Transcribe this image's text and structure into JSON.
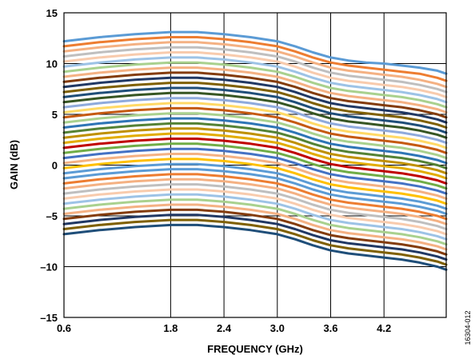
{
  "chart_data": {
    "type": "line",
    "title": "",
    "xlabel": "FREQUENCY (GHz)",
    "ylabel": "GAIN (dB)",
    "xlim": [
      0.6,
      4.9
    ],
    "ylim": [
      -15,
      15
    ],
    "x_ticks": [
      0.6,
      1.8,
      2.4,
      3.0,
      3.6,
      4.2
    ],
    "x_tick_labels": [
      "0.6",
      "1.8",
      "2.4",
      "3.0",
      "3.6",
      "4.2"
    ],
    "y_ticks": [
      -15,
      -10,
      -5,
      0,
      5,
      10,
      15
    ],
    "y_tick_labels": [
      "–15",
      "–10",
      "–5",
      "0",
      "5",
      "10",
      "15"
    ],
    "grid": true,
    "legend": "none",
    "x": [
      0.6,
      1.0,
      1.4,
      1.8,
      2.1,
      2.4,
      2.7,
      3.0,
      3.2,
      3.4,
      3.6,
      3.8,
      4.0,
      4.2,
      4.4,
      4.6,
      4.8,
      4.9
    ],
    "series": [
      {
        "values": [
          12.2,
          12.6,
          12.9,
          13.1,
          13.1,
          12.9,
          12.6,
          12.2,
          11.7,
          11.1,
          10.6,
          10.3,
          10.1,
          10.0,
          9.8,
          9.6,
          9.3,
          9.0
        ]
      },
      {
        "values": [
          11.7,
          12.1,
          12.4,
          12.6,
          12.6,
          12.4,
          12.1,
          11.7,
          11.2,
          10.6,
          10.1,
          9.8,
          9.6,
          9.4,
          9.2,
          9.0,
          8.6,
          8.3
        ]
      },
      {
        "values": [
          11.2,
          11.6,
          11.9,
          12.1,
          12.1,
          11.9,
          11.6,
          11.2,
          10.7,
          10.1,
          9.6,
          9.3,
          9.1,
          8.9,
          8.7,
          8.4,
          8.0,
          7.7
        ]
      },
      {
        "values": [
          10.7,
          11.1,
          11.4,
          11.6,
          11.6,
          11.4,
          11.1,
          10.7,
          10.2,
          9.6,
          9.1,
          8.8,
          8.6,
          8.4,
          8.2,
          7.9,
          7.5,
          7.2
        ]
      },
      {
        "values": [
          10.2,
          10.6,
          10.9,
          11.1,
          11.1,
          10.9,
          10.6,
          10.2,
          9.7,
          9.1,
          8.6,
          8.3,
          8.1,
          7.9,
          7.7,
          7.4,
          7.0,
          6.7
        ]
      },
      {
        "values": [
          9.7,
          10.1,
          10.4,
          10.6,
          10.6,
          10.4,
          10.1,
          9.7,
          9.2,
          8.6,
          8.1,
          7.8,
          7.6,
          7.4,
          7.2,
          6.9,
          6.5,
          6.2
        ]
      },
      {
        "values": [
          9.2,
          9.6,
          9.9,
          10.1,
          10.1,
          9.9,
          9.6,
          9.2,
          8.7,
          8.1,
          7.6,
          7.3,
          7.1,
          6.9,
          6.7,
          6.4,
          6.0,
          5.7
        ]
      },
      {
        "values": [
          8.7,
          9.1,
          9.4,
          9.6,
          9.6,
          9.4,
          9.1,
          8.7,
          8.2,
          7.6,
          7.1,
          6.8,
          6.6,
          6.4,
          6.2,
          5.9,
          5.5,
          5.2
        ]
      },
      {
        "values": [
          8.2,
          8.6,
          8.9,
          9.1,
          9.1,
          8.9,
          8.6,
          8.2,
          7.7,
          7.1,
          6.6,
          6.3,
          6.1,
          5.9,
          5.7,
          5.4,
          5.0,
          4.7
        ]
      },
      {
        "values": [
          7.7,
          8.1,
          8.4,
          8.6,
          8.6,
          8.4,
          8.1,
          7.7,
          7.2,
          6.6,
          6.1,
          5.8,
          5.6,
          5.4,
          5.2,
          4.9,
          4.5,
          4.2
        ]
      },
      {
        "values": [
          7.2,
          7.6,
          7.9,
          8.1,
          8.1,
          7.9,
          7.6,
          7.2,
          6.7,
          6.1,
          5.6,
          5.3,
          5.1,
          4.9,
          4.7,
          4.4,
          4.0,
          3.7
        ]
      },
      {
        "values": [
          6.7,
          7.1,
          7.4,
          7.6,
          7.6,
          7.4,
          7.1,
          6.7,
          6.2,
          5.6,
          5.1,
          4.8,
          4.6,
          4.4,
          4.2,
          3.9,
          3.5,
          3.2
        ]
      },
      {
        "values": [
          6.2,
          6.6,
          6.9,
          7.1,
          7.1,
          6.9,
          6.6,
          6.2,
          5.7,
          5.1,
          4.6,
          4.3,
          4.1,
          3.9,
          3.7,
          3.4,
          3.0,
          2.7
        ]
      },
      {
        "values": [
          5.7,
          6.1,
          6.4,
          6.6,
          6.6,
          6.4,
          6.1,
          5.7,
          5.2,
          4.6,
          4.1,
          3.8,
          3.6,
          3.4,
          3.2,
          2.9,
          2.5,
          2.2
        ]
      },
      {
        "values": [
          5.2,
          5.6,
          5.9,
          6.1,
          6.1,
          5.9,
          5.6,
          5.2,
          4.7,
          4.1,
          3.6,
          3.3,
          3.1,
          2.9,
          2.7,
          2.4,
          2.0,
          1.7
        ]
      },
      {
        "values": [
          4.7,
          5.1,
          5.4,
          5.6,
          5.6,
          5.4,
          5.1,
          4.7,
          4.2,
          3.6,
          3.1,
          2.8,
          2.6,
          2.4,
          2.2,
          1.9,
          1.5,
          1.2
        ]
      },
      {
        "values": [
          4.2,
          4.6,
          4.9,
          5.1,
          5.1,
          4.9,
          4.6,
          4.2,
          3.7,
          3.1,
          2.6,
          2.3,
          2.1,
          1.9,
          1.7,
          1.4,
          1.0,
          0.7
        ]
      },
      {
        "values": [
          3.7,
          4.1,
          4.4,
          4.6,
          4.6,
          4.4,
          4.1,
          3.7,
          3.2,
          2.6,
          2.1,
          1.8,
          1.6,
          1.4,
          1.2,
          0.9,
          0.5,
          0.2
        ]
      },
      {
        "values": [
          3.2,
          3.6,
          3.9,
          4.1,
          4.1,
          3.9,
          3.6,
          3.2,
          2.7,
          2.1,
          1.6,
          1.3,
          1.1,
          0.9,
          0.7,
          0.4,
          0.0,
          -0.3
        ]
      },
      {
        "values": [
          2.7,
          3.1,
          3.4,
          3.6,
          3.6,
          3.4,
          3.1,
          2.7,
          2.2,
          1.6,
          1.1,
          0.8,
          0.6,
          0.4,
          0.2,
          -0.1,
          -0.5,
          -0.8
        ]
      },
      {
        "values": [
          2.2,
          2.6,
          2.9,
          3.1,
          3.1,
          2.9,
          2.6,
          2.2,
          1.7,
          1.1,
          0.6,
          0.3,
          0.1,
          -0.1,
          -0.3,
          -0.6,
          -1.0,
          -1.3
        ]
      },
      {
        "values": [
          1.7,
          2.1,
          2.4,
          2.6,
          2.6,
          2.4,
          2.1,
          1.7,
          1.2,
          0.6,
          0.1,
          -0.2,
          -0.4,
          -0.6,
          -0.8,
          -1.1,
          -1.5,
          -1.8
        ]
      },
      {
        "values": [
          1.2,
          1.6,
          1.9,
          2.1,
          2.1,
          1.9,
          1.6,
          1.2,
          0.7,
          0.1,
          -0.4,
          -0.7,
          -0.9,
          -1.1,
          -1.3,
          -1.6,
          -2.0,
          -2.3
        ]
      },
      {
        "values": [
          0.7,
          1.1,
          1.4,
          1.6,
          1.6,
          1.4,
          1.1,
          0.7,
          0.2,
          -0.4,
          -0.9,
          -1.2,
          -1.4,
          -1.6,
          -1.8,
          -2.1,
          -2.5,
          -2.8
        ]
      },
      {
        "values": [
          0.2,
          0.6,
          0.9,
          1.1,
          1.1,
          0.9,
          0.6,
          0.2,
          -0.3,
          -0.9,
          -1.4,
          -1.7,
          -1.9,
          -2.1,
          -2.3,
          -2.6,
          -3.0,
          -3.3
        ]
      },
      {
        "values": [
          -0.3,
          0.1,
          0.4,
          0.6,
          0.6,
          0.4,
          0.1,
          -0.3,
          -0.8,
          -1.4,
          -1.9,
          -2.2,
          -2.4,
          -2.6,
          -2.8,
          -3.1,
          -3.5,
          -3.8
        ]
      },
      {
        "values": [
          -0.8,
          -0.4,
          -0.1,
          0.1,
          0.1,
          -0.1,
          -0.4,
          -0.8,
          -1.3,
          -1.9,
          -2.4,
          -2.7,
          -2.9,
          -3.1,
          -3.3,
          -3.6,
          -4.0,
          -4.3
        ]
      },
      {
        "values": [
          -1.3,
          -0.9,
          -0.6,
          -0.4,
          -0.4,
          -0.6,
          -0.9,
          -1.3,
          -1.8,
          -2.4,
          -2.9,
          -3.2,
          -3.4,
          -3.6,
          -3.8,
          -4.1,
          -4.5,
          -4.8
        ]
      },
      {
        "values": [
          -1.8,
          -1.4,
          -1.1,
          -0.9,
          -0.9,
          -1.1,
          -1.4,
          -1.8,
          -2.3,
          -2.9,
          -3.4,
          -3.7,
          -3.9,
          -4.1,
          -4.3,
          -4.6,
          -5.0,
          -5.3
        ]
      },
      {
        "values": [
          -2.3,
          -1.9,
          -1.6,
          -1.4,
          -1.4,
          -1.6,
          -1.9,
          -2.3,
          -2.8,
          -3.4,
          -3.9,
          -4.2,
          -4.4,
          -4.6,
          -4.8,
          -5.1,
          -5.5,
          -5.8
        ]
      },
      {
        "values": [
          -2.8,
          -2.4,
          -2.1,
          -1.9,
          -1.9,
          -2.1,
          -2.4,
          -2.8,
          -3.3,
          -3.9,
          -4.4,
          -4.7,
          -4.9,
          -5.1,
          -5.3,
          -5.6,
          -6.0,
          -6.3
        ]
      },
      {
        "values": [
          -3.3,
          -2.9,
          -2.6,
          -2.4,
          -2.4,
          -2.6,
          -2.9,
          -3.3,
          -3.8,
          -4.4,
          -4.9,
          -5.2,
          -5.4,
          -5.6,
          -5.8,
          -6.1,
          -6.5,
          -6.8
        ]
      },
      {
        "values": [
          -3.8,
          -3.4,
          -3.1,
          -2.9,
          -2.9,
          -3.1,
          -3.4,
          -3.8,
          -4.3,
          -4.9,
          -5.4,
          -5.7,
          -5.9,
          -6.1,
          -6.3,
          -6.6,
          -7.0,
          -7.3
        ]
      },
      {
        "values": [
          -4.3,
          -3.9,
          -3.6,
          -3.4,
          -3.4,
          -3.6,
          -3.9,
          -4.3,
          -4.8,
          -5.4,
          -5.9,
          -6.2,
          -6.4,
          -6.6,
          -6.8,
          -7.1,
          -7.5,
          -7.8
        ]
      },
      {
        "values": [
          -4.8,
          -4.4,
          -4.1,
          -3.9,
          -3.9,
          -4.1,
          -4.4,
          -4.8,
          -5.3,
          -5.9,
          -6.4,
          -6.7,
          -6.9,
          -7.1,
          -7.3,
          -7.6,
          -8.0,
          -8.3
        ]
      },
      {
        "values": [
          -5.3,
          -4.9,
          -4.6,
          -4.4,
          -4.4,
          -4.6,
          -4.9,
          -5.3,
          -5.8,
          -6.4,
          -6.9,
          -7.2,
          -7.4,
          -7.6,
          -7.8,
          -8.1,
          -8.5,
          -8.8
        ]
      },
      {
        "values": [
          -5.8,
          -5.4,
          -5.1,
          -4.9,
          -4.9,
          -5.1,
          -5.4,
          -5.8,
          -6.3,
          -6.9,
          -7.4,
          -7.7,
          -7.9,
          -8.1,
          -8.3,
          -8.6,
          -9.0,
          -9.3
        ]
      },
      {
        "values": [
          -6.3,
          -5.9,
          -5.6,
          -5.4,
          -5.4,
          -5.6,
          -5.9,
          -6.3,
          -6.8,
          -7.4,
          -7.9,
          -8.2,
          -8.4,
          -8.6,
          -8.8,
          -9.1,
          -9.5,
          -9.8
        ]
      },
      {
        "values": [
          -6.8,
          -6.4,
          -6.1,
          -5.9,
          -5.9,
          -6.1,
          -6.4,
          -6.8,
          -7.3,
          -7.9,
          -8.4,
          -8.7,
          -8.9,
          -9.1,
          -9.3,
          -9.6,
          -10.0,
          -10.3
        ]
      }
    ],
    "colors": [
      "#5B9BD5",
      "#ED7D31",
      "#F4B183",
      "#BFBFBF",
      "#F8CBAD",
      "#9DC3E6",
      "#A9D18E",
      "#F4B183",
      "#843C0C",
      "#203864",
      "#7F6000",
      "#1F4E79",
      "#375623",
      "#8FAADC",
      "#FFD966",
      "#C55A11",
      "#A9D18E",
      "#2E75B6",
      "#548235",
      "#BF9000",
      "#E2AC00",
      "#C00000",
      "#70AD47",
      "#4472C4",
      "#F4B183",
      "#FFC000",
      "#5B9BD5"
    ]
  },
  "figure_code": "16304-012"
}
